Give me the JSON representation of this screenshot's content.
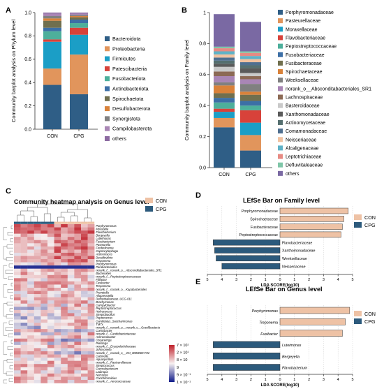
{
  "colors": {
    "CON": "#eec2a5",
    "CPG": "#2c5a7c",
    "heat_high": "#c0202a",
    "heat_mid": "#f7f0f0",
    "heat_low": "#101c8a"
  },
  "chart_data": [
    {
      "panel": "A",
      "type": "bar",
      "stacked": true,
      "ylabel": "Community barplot analysis on Phylum level",
      "categories": [
        "CON",
        "CPG"
      ],
      "ylim": [
        0,
        1
      ],
      "yticks": [
        "0.0",
        "0.2",
        "0.4",
        "0.6",
        "0.8",
        "1.0"
      ],
      "series": [
        {
          "name": "Bacteroidota",
          "color": "#2f5e86",
          "values": [
            0.38,
            0.3
          ]
        },
        {
          "name": "Proteobacteria",
          "color": "#e1955c",
          "values": [
            0.14,
            0.34
          ]
        },
        {
          "name": "Firmicutes",
          "color": "#1b9ec6",
          "values": [
            0.23,
            0.17
          ]
        },
        {
          "name": "Patescibacteria",
          "color": "#d8423a",
          "values": [
            0.02,
            0.06
          ]
        },
        {
          "name": "Fusobacteriota",
          "color": "#4daf9b",
          "values": [
            0.07,
            0.04
          ]
        },
        {
          "name": "Actinobacteriota",
          "color": "#3c6fa6",
          "values": [
            0.03,
            0.03
          ]
        },
        {
          "name": "Spirochaetota",
          "color": "#706f4e",
          "values": [
            0.06,
            0.02
          ]
        },
        {
          "name": "Desulfobacterota",
          "color": "#d9823a",
          "values": [
            0.02,
            0.01
          ]
        },
        {
          "name": "Synergistota",
          "color": "#808080",
          "values": [
            0.02,
            0.01
          ]
        },
        {
          "name": "Campilobacterota",
          "color": "#a986b5",
          "values": [
            0.02,
            0.01
          ]
        },
        {
          "name": "others",
          "color": "#8c6aa1",
          "values": [
            0.01,
            0.01
          ]
        }
      ]
    },
    {
      "panel": "B",
      "type": "bar",
      "stacked": true,
      "ylabel": "Community barplot analysis on Family level",
      "categories": [
        "CON",
        "CPG"
      ],
      "ylim": [
        0,
        1
      ],
      "yticks": [
        "0.0",
        "0.2",
        "0.4",
        "0.6",
        "0.8",
        "1"
      ],
      "series": [
        {
          "name": "Porphyromonadaceae",
          "color": "#2f5e86",
          "values": [
            0.26,
            0.11
          ]
        },
        {
          "name": "Pasteurellaceae",
          "color": "#e1955c",
          "values": [
            0.06,
            0.1
          ]
        },
        {
          "name": "Moraxellaceae",
          "color": "#1b9ec6",
          "values": [
            0.04,
            0.08
          ]
        },
        {
          "name": "Flavobacteriaceae",
          "color": "#d8423a",
          "values": [
            0.02,
            0.08
          ]
        },
        {
          "name": "Peptostreptococcaceae",
          "color": "#4daf9b",
          "values": [
            0.04,
            0.03
          ]
        },
        {
          "name": "Fusobacteriaceae",
          "color": "#3c6fa6",
          "values": [
            0.03,
            0.03
          ]
        },
        {
          "name": "Fusibacteraceae",
          "color": "#706f4e",
          "values": [
            0.03,
            0.04
          ]
        },
        {
          "name": "Spirochaetaceae",
          "color": "#d9823a",
          "values": [
            0.05,
            0.02
          ]
        },
        {
          "name": "Weeksellaceae",
          "color": "#808080",
          "values": [
            0.02,
            0.05
          ]
        },
        {
          "name": "norank_o__Absconditabacteriales_SR1",
          "color": "#a986b5",
          "values": [
            0.04,
            0.03
          ]
        },
        {
          "name": "Lachnospiraceae",
          "color": "#8c6a55",
          "values": [
            0.03,
            0.02
          ]
        },
        {
          "name": "Bacteroidaceae",
          "color": "#c9c9c9",
          "values": [
            0.03,
            0.02
          ]
        },
        {
          "name": "Xanthomonadaceae",
          "color": "#5a5a5a",
          "values": [
            0.02,
            0.03
          ]
        },
        {
          "name": "Actinomycetaceae",
          "color": "#556f6f",
          "values": [
            0.02,
            0.02
          ]
        },
        {
          "name": "Comamonadaceae",
          "color": "#4f6f8f",
          "values": [
            0.02,
            0.02
          ]
        },
        {
          "name": "Neisseriaceae",
          "color": "#f1c2a0",
          "values": [
            0.02,
            0.02
          ]
        },
        {
          "name": "Alcaligenaceae",
          "color": "#5fb2c7",
          "values": [
            0.02,
            0.02
          ]
        },
        {
          "name": "Leptotrichiaceae",
          "color": "#e78a83",
          "values": [
            0.02,
            0.02
          ]
        },
        {
          "name": "Defluviitaleaceae",
          "color": "#7fc6a8",
          "values": [
            0.01,
            0.01
          ]
        },
        {
          "name": "others",
          "color": "#7a69a3",
          "values": [
            0.21,
            0.19
          ]
        }
      ]
    },
    {
      "panel": "C",
      "type": "heatmap",
      "title": "Community heatmap analysis on Genus level",
      "legend": [
        "CON",
        "CPG"
      ],
      "groups": [
        "CPG",
        "CPG",
        "CPG",
        "CPG",
        "CPG",
        "CPG",
        "CON",
        "CON",
        "CON",
        "CON",
        "CON",
        "CON"
      ],
      "color_scale_labels": [
        "7 × 10¹",
        "2 × 10¹",
        "8 × 10",
        "9",
        "9 × 10⁻¹",
        "1 × 10⁻¹"
      ],
      "rows": [
        "Porphyromonas",
        "Moraxella",
        "Flavobacterium",
        "Bergeyella",
        "Luteimonas",
        "Fusobacterium",
        "Pasteurella",
        "Frederiksenia",
        "Capnocytophaga",
        "Actinomyces",
        "Desulfovibrio",
        "Treponema",
        "Porphyromonas2",
        "Parabacteroides",
        "norank_f__norank_o__Absconditabacteriales_SR1",
        "Bacteroides",
        "norank_f__Peptostreptococcaceae",
        "Filifactor",
        "Fusibacter",
        "Treponema2",
        "norank_f__norank_o__Kapabacteriales",
        "Prevotella",
        "Alloprevotella",
        "Defluviitaleaceae_UCG-011",
        "Brachymonas",
        "Campylobacter",
        "Peptostreptococcus",
        "Helcococcus",
        "Streptobacillus",
        "Peptococcus",
        "Candidatus_Saccharimonas",
        "TM7x",
        "norank_f__norank_o__norank_c__Gracilibacteria",
        "Corticibacter",
        "norank_f__Cardiobacteriaceae",
        "Achromobacter",
        "Oceanivirga",
        "Pelistega",
        "norank_f__Erysipelotrichaceae",
        "Johnsonella",
        "norank_f__norank_o__JGI_0000069-P22",
        "Catonella",
        "Aquaspirillum",
        "norank_f__Pasteurellaceae",
        "Streptococcus",
        "Corynebacterium",
        "Lautropia",
        "Neisseria",
        "Conchiformibius",
        "norank_f__Aerococcaceae"
      ],
      "row_labels": [
        "Porphyromonas",
        "Moraxella",
        "Flavobacterium",
        "Bergeyella",
        "Luteimonas",
        "Fusobacterium",
        "Pasteurella",
        "Frederiksenia",
        "Capnocytophaga",
        "Actinomyces",
        "Desulfovibrio",
        "Treponema",
        "Porphyromonas",
        "Parabacteroides",
        "norank_f__norank_o__Absconditabacteriales_SR1",
        "Bacteroides",
        "norank_f__Peptostreptococcaceae",
        "Filifactor",
        "Fusibacter",
        "Treponema",
        "norank_f__norank_o__Kapabacteriales",
        "Prevotella",
        "Alloprevotella",
        "Defluviitaleaceae_UCG-011",
        "Brachymonas",
        "Campylobacter",
        "Peptostreptococcus",
        "Helcococcus",
        "Streptobacillus",
        "Peptococcus",
        "Candidatus_Saccharimonas",
        "TM7x",
        "norank_f__norank_o__norank_c__Gracilibacteria",
        "Corticibacter",
        "norank_f__Cardiobacteriaceae",
        "Achromobacter",
        "Oceanivirga",
        "Pelistega",
        "norank_f__Erysipelotrichaceae",
        "Johnsonella",
        "norank_f__norank_o__JGI_0000069-P22",
        "Catonella",
        "Aquaspirillum",
        "norank_f__Pasteurellaceae",
        "Streptococcus",
        "Corynebacterium",
        "Lautropia",
        "Neisseria",
        "Conchiformibius",
        "norank_f__Aerococcaceae"
      ]
    },
    {
      "panel": "D",
      "type": "bar",
      "orientation": "horizontal",
      "title": "LEfSe Bar on Family level",
      "xlabel": "LDA SCORE(log10)",
      "legend": [
        "CON",
        "CPG"
      ],
      "xlim": [
        -5,
        5
      ],
      "xticks": [
        "5",
        "4",
        "3",
        "2",
        "1",
        "0",
        "1",
        "2",
        "3",
        "4",
        "5"
      ],
      "bars": [
        {
          "label": "Porphyromonadaceae",
          "group": "CON",
          "value": 4.7
        },
        {
          "label": "Spirochaetaceae",
          "group": "CON",
          "value": 4.4
        },
        {
          "label": "Fusibacteraceae",
          "group": "CON",
          "value": 4.3
        },
        {
          "label": "Peptostreptococcaceae",
          "group": "CON",
          "value": 4.2
        },
        {
          "label": "Flavobacteriaceae",
          "group": "CPG",
          "value": -4.6
        },
        {
          "label": "Xanthomonadaceae",
          "group": "CPG",
          "value": -4.5
        },
        {
          "label": "Weeksellaceae",
          "group": "CPG",
          "value": -4.4
        },
        {
          "label": "Neisseriaceae",
          "group": "CPG",
          "value": -4.0
        }
      ]
    },
    {
      "panel": "E",
      "type": "bar",
      "orientation": "horizontal",
      "title": "LEfSe Bar on Genus level",
      "xlabel": "LDA SCORE(log10)",
      "legend": [
        "CON",
        "CPG"
      ],
      "xlim": [
        -5,
        5
      ],
      "xticks": [
        "5",
        "4",
        "3",
        "2",
        "1",
        "0",
        "1",
        "2",
        "3",
        "4",
        "5"
      ],
      "bars": [
        {
          "label": "Porphyromonas",
          "group": "CON",
          "value": 4.8
        },
        {
          "label": "Treponema",
          "group": "CON",
          "value": 4.5
        },
        {
          "label": "Fusibacter",
          "group": "CON",
          "value": 4.3
        },
        {
          "label": "Luteimonas",
          "group": "CPG",
          "value": -4.6
        },
        {
          "label": "Bergeyella",
          "group": "CPG",
          "value": -4.6
        },
        {
          "label": "Flavobacterium",
          "group": "CPG",
          "value": -4.6
        }
      ]
    }
  ]
}
